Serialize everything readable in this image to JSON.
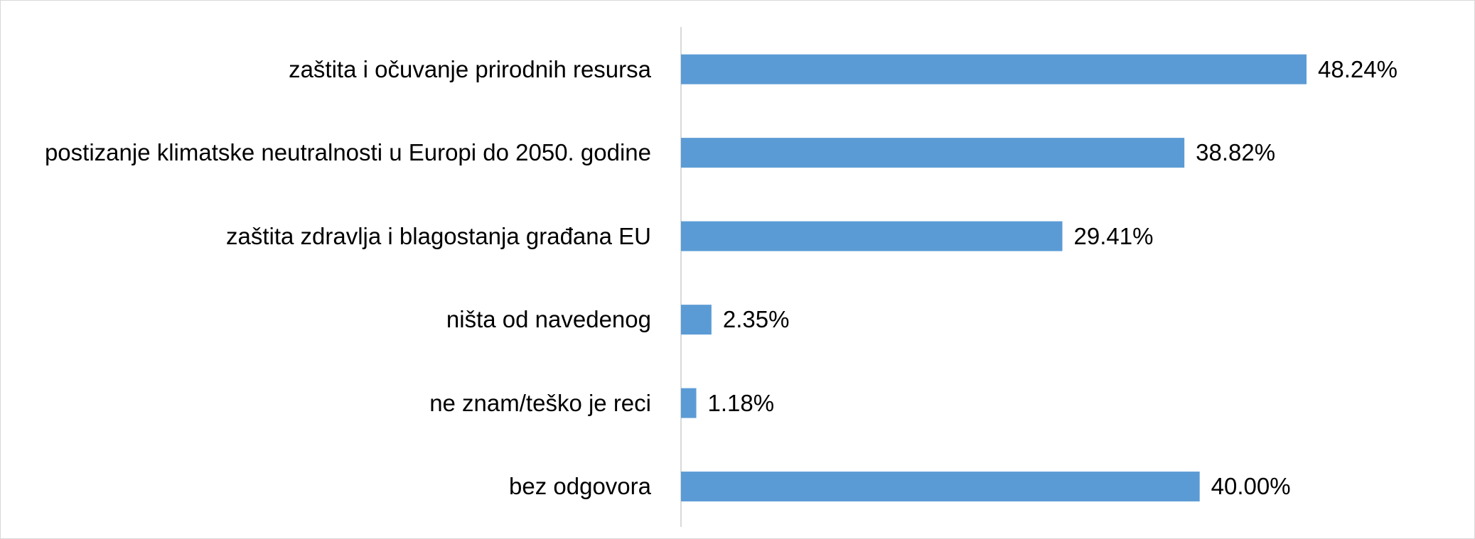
{
  "chart_data": {
    "type": "bar",
    "orientation": "horizontal",
    "categories": [
      "zaštita i očuvanje prirodnih resursa",
      "postizanje klimatske neutralnosti u Europi do 2050. godine",
      "zaštita zdravlja i blagostanja građana EU",
      "ništa od navedenog",
      "ne znam/teško je reci",
      "bez odgovora"
    ],
    "values": [
      48.24,
      38.82,
      29.41,
      2.35,
      1.18,
      40
    ],
    "value_labels": [
      "48.24%",
      "38.82%",
      "29.41%",
      "2.35%",
      "1.18%",
      "40.00%"
    ],
    "color": "#5b9bd5"
  }
}
